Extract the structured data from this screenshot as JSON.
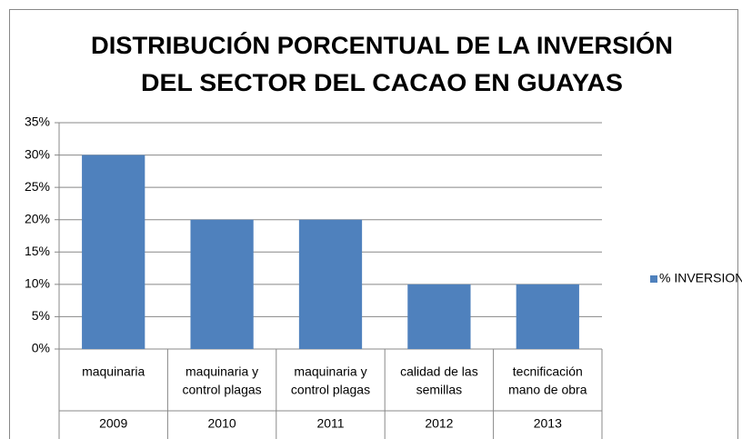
{
  "chart_data": {
    "type": "bar",
    "title": [
      "DISTRIBUCIÓN PORCENTUAL DE LA INVERSIÓN",
      "DEL  SECTOR DEL CACAO EN GUAYAS"
    ],
    "categories": [
      "2009",
      "2010",
      "2011",
      "2012",
      "2013"
    ],
    "subcategories": [
      [
        "maquinaria"
      ],
      [
        "maquinaria y",
        "control plagas"
      ],
      [
        "maquinaria y",
        "control plagas"
      ],
      [
        "calidad de las",
        "semillas"
      ],
      [
        "tecnificación",
        "mano de obra"
      ]
    ],
    "series": [
      {
        "name": "% INVERSION",
        "color": "#4f81bd",
        "values": [
          30,
          20,
          20,
          10,
          10
        ]
      }
    ],
    "ylim": [
      0,
      35
    ],
    "yticks": [
      {
        "value": 0,
        "label": "0%"
      },
      {
        "value": 5,
        "label": "5%"
      },
      {
        "value": 10,
        "label": "10%"
      },
      {
        "value": 15,
        "label": "15%"
      },
      {
        "value": 20,
        "label": "20%"
      },
      {
        "value": 25,
        "label": "25%"
      },
      {
        "value": 30,
        "label": "30%"
      },
      {
        "value": 35,
        "label": "35%"
      }
    ],
    "grid": true,
    "legend": "right"
  }
}
